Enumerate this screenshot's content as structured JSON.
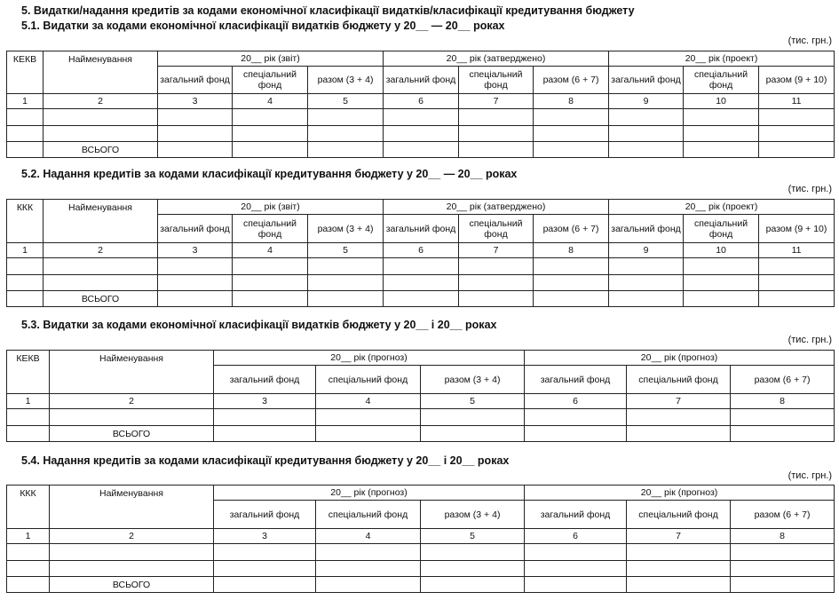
{
  "section_title": "5. Видатки/надання кредитів за кодами економічної класифікації видатків/класифікації кредитування бюджету",
  "unit": "(тис. грн.)",
  "tables": [
    {
      "title": "5.1. Видатки за кодами економічної класифікації видатків бюджету у 20__ — 20__ роках",
      "code_header": "КЕКВ",
      "name_header": "Найменування",
      "groups": [
        "20__ рік (звіт)",
        "20__ рік (затверджено)",
        "20__ рік (проект)"
      ],
      "subheaders": [
        "загальний фонд",
        "спеціальний фонд",
        "разом (3 + 4)",
        "загальний фонд",
        "спеціальний фонд",
        "разом (6 + 7)",
        "загальний фонд",
        "спеціальний фонд",
        "разом (9 + 10)"
      ],
      "numbers": [
        "1",
        "2",
        "3",
        "4",
        "5",
        "6",
        "7",
        "8",
        "9",
        "10",
        "11"
      ],
      "empty_rows": 2,
      "total": "ВСЬОГО"
    },
    {
      "title": "5.2. Надання кредитів за кодами класифікації кредитування бюджету у 20__ — 20__ роках",
      "code_header": "ККК",
      "name_header": "Найменування",
      "groups": [
        "20__ рік (звіт)",
        "20__ рік (затверджено)",
        "20__ рік (проект)"
      ],
      "subheaders": [
        "загальний фонд",
        "спеціальний фонд",
        "разом (3 + 4)",
        "загальний фонд",
        "спеціальний фонд",
        "разом (6 + 7)",
        "загальний фонд",
        "спеціальний фонд",
        "разом (9 + 10)"
      ],
      "numbers": [
        "1",
        "2",
        "3",
        "4",
        "5",
        "6",
        "7",
        "8",
        "9",
        "10",
        "11"
      ],
      "empty_rows": 2,
      "total": "ВСЬОГО"
    },
    {
      "title": "5.3. Видатки за кодами економічної класифікації видатків бюджету у 20__ і 20__ роках",
      "code_header": "КЕКВ",
      "name_header": "Найменування",
      "groups": [
        "20__ рік (прогноз)",
        "20__ рік (прогноз)"
      ],
      "subheaders": [
        "загальний фонд",
        "спеціальний фонд",
        "разом (3 + 4)",
        "загальний фонд",
        "спеціальний фонд",
        "разом (6 + 7)"
      ],
      "numbers": [
        "1",
        "2",
        "3",
        "4",
        "5",
        "6",
        "7",
        "8"
      ],
      "empty_rows": 1,
      "total": "ВСЬОГО"
    },
    {
      "title": "5.4. Надання кредитів за кодами класифікації кредитування бюджету у 20__ і 20__ роках",
      "code_header": "ККК",
      "name_header": "Найменування",
      "groups": [
        "20__ рік (прогноз)",
        "20__ рік (прогноз)"
      ],
      "subheaders": [
        "загальний фонд",
        "спеціальний фонд",
        "разом (3 + 4)",
        "загальний фонд",
        "спеціальний фонд",
        "разом (6 + 7)"
      ],
      "numbers": [
        "1",
        "2",
        "3",
        "4",
        "5",
        "6",
        "7",
        "8"
      ],
      "empty_rows": 2,
      "total": "ВСЬОГО"
    }
  ]
}
